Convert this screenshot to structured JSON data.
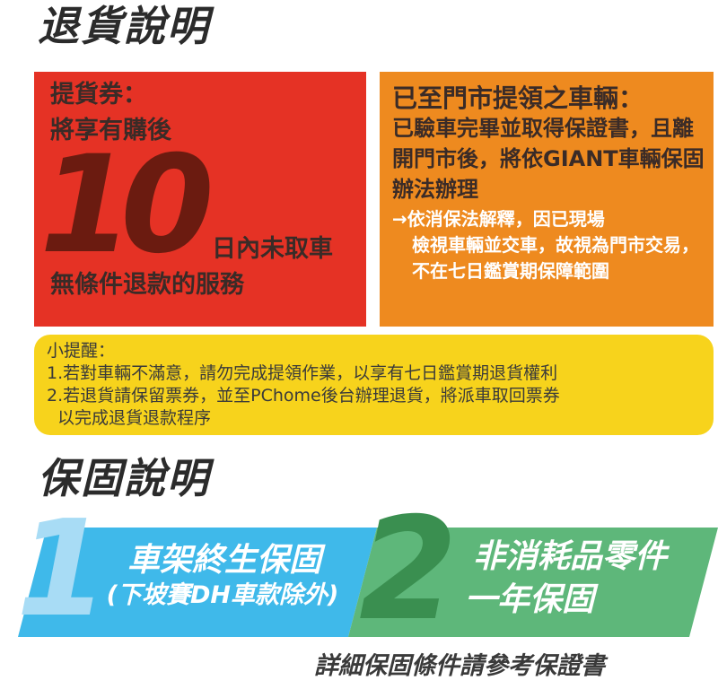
{
  "return_section": {
    "heading": "退貨說明",
    "voucher": {
      "line1": "提貨券：",
      "line2": "將享有購後",
      "big_number": "10",
      "line3": "日內未取車",
      "line4": "無條件退款的服務"
    },
    "pickup": {
      "title": "已至門市提領之車輛：",
      "body": "已驗車完畢並取得保證書，且離開門市後，將依GIANT車輛保固辦法辦理",
      "note_first": "→依消保法解釋，因已現場",
      "note_rest": "檢視車輛並交車，故視為門市交易，不在七日鑑賞期保障範圍"
    },
    "reminder": {
      "title": "小提醒：",
      "item1": "1.若對車輛不滿意，請勿完成提領作業，以享有七日鑑賞期退貨權利",
      "item2": "2.若退貨請保留票券，並至PChome後台辦理退貨，將派車取回票券",
      "item2_cont": "以完成退貨退款程序"
    },
    "colors": {
      "red": "#e53225",
      "orange": "#ee8a1f",
      "yellow": "#f7d31c"
    }
  },
  "warranty_section": {
    "heading": "保固說明",
    "item1": {
      "number": "1",
      "title": "車架終生保固",
      "subtitle": "(下坡賽DH車款除外)"
    },
    "item2": {
      "number": "2",
      "title": "非消耗品零件",
      "subtitle": "一年保固"
    },
    "footnote": "詳細保固條件請參考保證書",
    "colors": {
      "blue": "#3fb9ea",
      "green": "#5eb77a"
    }
  }
}
